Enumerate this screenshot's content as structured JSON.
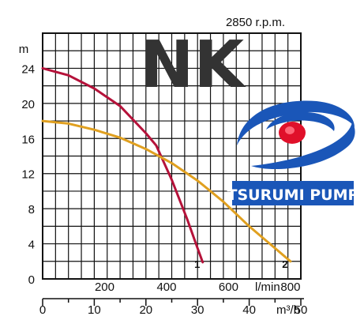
{
  "chart_data": {
    "type": "line",
    "title": "NK",
    "speed_label": "2850 r.p.m.",
    "ylabel": "m",
    "ylim": [
      0,
      28
    ],
    "y_ticks": [
      0,
      4,
      8,
      12,
      16,
      20,
      24
    ],
    "xlim_m3h": [
      0,
      50
    ],
    "x_ticks_m3h": [
      0,
      10,
      20,
      30,
      40,
      50
    ],
    "xlabel_m3h": "m³/h",
    "x_ticks_lmin": [
      200,
      400,
      600,
      800
    ],
    "xlabel_lmin": "l/min",
    "grid": true,
    "series": [
      {
        "name": "1",
        "color": "#b5123a",
        "x": [
          0,
          5,
          10,
          15,
          20,
          22,
          25,
          28,
          30,
          31
        ],
        "y": [
          24,
          23.2,
          21.7,
          19.7,
          16.6,
          15.2,
          11.3,
          6.8,
          3.5,
          1.9
        ]
      },
      {
        "name": "2",
        "color": "#e0a020",
        "x": [
          0,
          5,
          10,
          15,
          20,
          25,
          30,
          35,
          40,
          45,
          48
        ],
        "y": [
          18,
          17.7,
          17.0,
          16.1,
          14.8,
          13.2,
          11.2,
          8.8,
          6.0,
          3.5,
          2.0
        ]
      }
    ]
  },
  "brand": {
    "name": "TSURUMI PUMP",
    "colors": {
      "blue": "#1a56b8",
      "red": "#e0102a"
    }
  }
}
